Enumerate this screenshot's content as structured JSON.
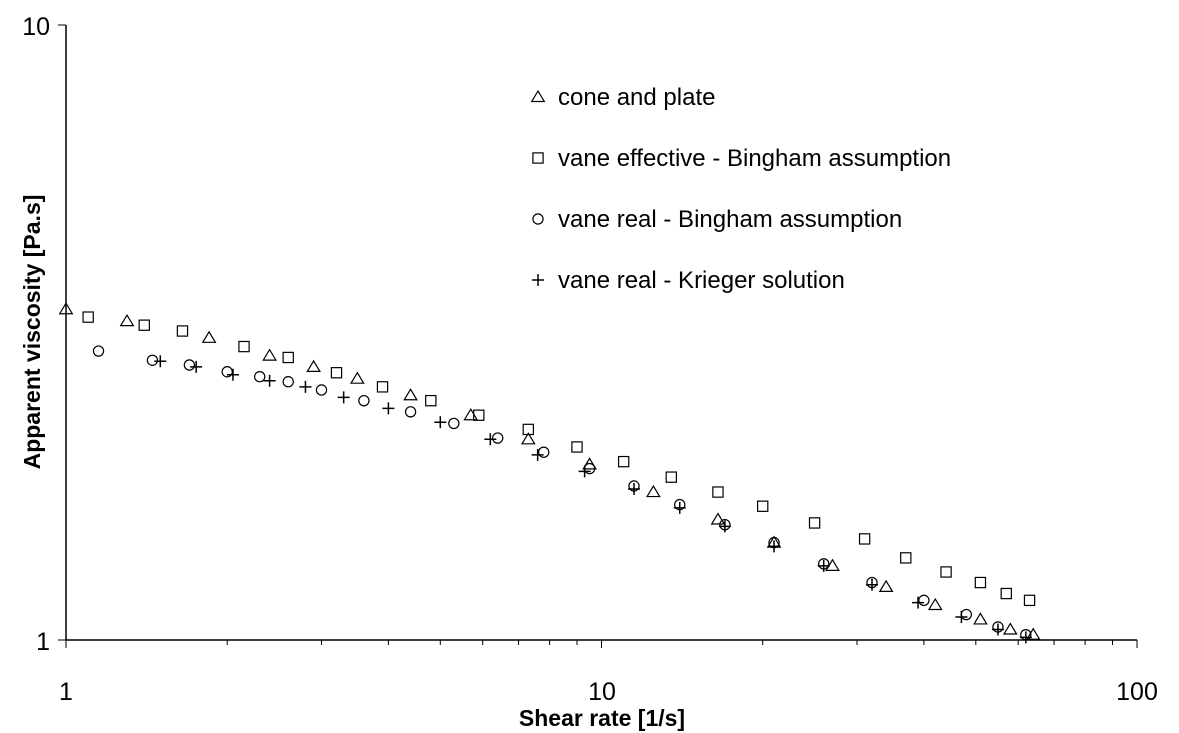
{
  "chart_data": {
    "type": "scatter",
    "title": "",
    "xlabel": "Shear rate [1/s]",
    "ylabel": "Apparent viscosity [Pa.s]",
    "xscale": "log",
    "yscale": "log",
    "xlim": [
      1,
      100
    ],
    "ylim": [
      1,
      10
    ],
    "x_ticks": [
      "1",
      "10",
      "100"
    ],
    "y_ticks": [
      "1",
      "10"
    ],
    "grid": false,
    "legend_position": "inside-top-right",
    "series": [
      {
        "name": "cone and plate",
        "marker": "triangle",
        "x": [
          1.0,
          1.3,
          1.85,
          2.4,
          2.9,
          3.5,
          4.4,
          5.7,
          7.3,
          9.5,
          12.5,
          16.5,
          21.0,
          27.0,
          34.0,
          42.0,
          51.0,
          58.0,
          64.0
        ],
        "y": [
          3.45,
          3.3,
          3.1,
          2.9,
          2.78,
          2.66,
          2.5,
          2.32,
          2.12,
          1.93,
          1.74,
          1.57,
          1.44,
          1.32,
          1.22,
          1.14,
          1.08,
          1.04,
          1.02
        ]
      },
      {
        "name": "vane effective - Bingham assumption",
        "marker": "square",
        "x": [
          1.1,
          1.4,
          1.65,
          2.15,
          2.6,
          3.2,
          3.9,
          4.8,
          5.9,
          7.3,
          9.0,
          11.0,
          13.5,
          16.5,
          20.0,
          25.0,
          31.0,
          37.0,
          44.0,
          51.0,
          57.0,
          63.0
        ],
        "y": [
          3.35,
          3.25,
          3.18,
          3.0,
          2.88,
          2.72,
          2.58,
          2.45,
          2.32,
          2.2,
          2.06,
          1.95,
          1.84,
          1.74,
          1.65,
          1.55,
          1.46,
          1.36,
          1.29,
          1.24,
          1.19,
          1.16
        ]
      },
      {
        "name": "vane real - Bingham assumption",
        "marker": "circle",
        "x": [
          1.15,
          1.45,
          1.7,
          2.0,
          2.3,
          2.6,
          3.0,
          3.6,
          4.4,
          5.3,
          6.4,
          7.8,
          9.5,
          11.5,
          14.0,
          17.0,
          21.0,
          26.0,
          32.0,
          40.0,
          48.0,
          55.0,
          62.0
        ],
        "y": [
          2.95,
          2.85,
          2.8,
          2.73,
          2.68,
          2.63,
          2.55,
          2.45,
          2.35,
          2.25,
          2.13,
          2.02,
          1.9,
          1.78,
          1.66,
          1.54,
          1.44,
          1.33,
          1.24,
          1.16,
          1.1,
          1.05,
          1.02
        ]
      },
      {
        "name": "vane real - Krieger solution",
        "marker": "plus",
        "x": [
          1.5,
          1.75,
          2.05,
          2.4,
          2.8,
          3.3,
          4.0,
          5.0,
          6.2,
          7.6,
          9.3,
          11.5,
          14.0,
          17.0,
          21.0,
          26.0,
          32.0,
          39.0,
          47.0,
          55.0,
          62.0
        ],
        "y": [
          2.84,
          2.78,
          2.7,
          2.64,
          2.58,
          2.48,
          2.38,
          2.26,
          2.12,
          2.0,
          1.88,
          1.76,
          1.64,
          1.53,
          1.42,
          1.32,
          1.23,
          1.15,
          1.09,
          1.04,
          1.01
        ]
      }
    ]
  }
}
